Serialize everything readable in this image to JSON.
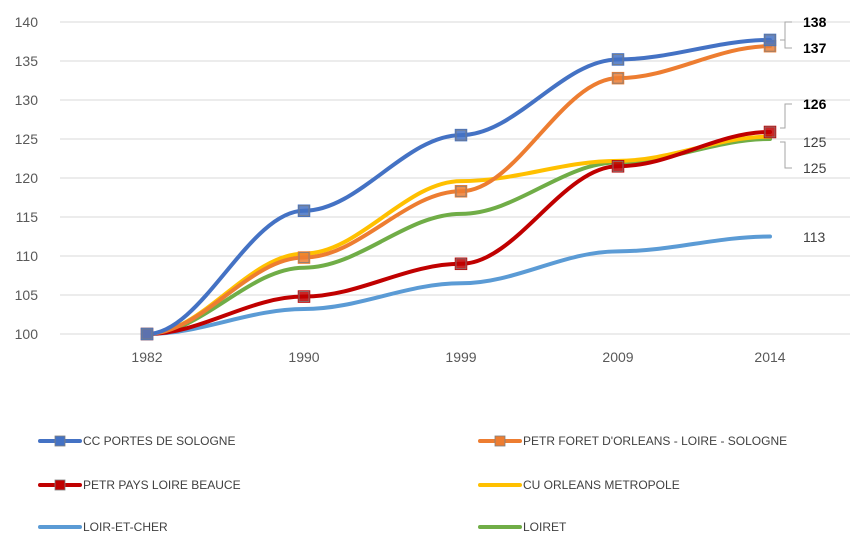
{
  "chart_data": {
    "type": "line",
    "categories": [
      "1982",
      "1990",
      "1999",
      "2009",
      "2014"
    ],
    "ylim": [
      100,
      140
    ],
    "yticks": [
      100,
      105,
      110,
      115,
      120,
      125,
      130,
      135,
      140
    ],
    "grid": true,
    "legend_position": "bottom",
    "series": [
      {
        "name": "CC PORTES DE SOLOGNE",
        "values": [
          100,
          115.8,
          125.5,
          135.2,
          137.7
        ],
        "color": "#4472c4",
        "markers": true,
        "end_label": "138",
        "end_label_bold": true
      },
      {
        "name": "PETR FORET D'ORLEANS - LOIRE - SOLOGNE",
        "values": [
          100,
          109.8,
          118.3,
          132.8,
          136.9
        ],
        "color": "#ed7d31",
        "markers": true,
        "end_label": "137",
        "end_label_bold": true
      },
      {
        "name": "PETR PAYS LOIRE BEAUCE",
        "values": [
          100,
          104.8,
          109.0,
          121.5,
          125.9
        ],
        "color": "#c00000",
        "markers": true,
        "end_label": "126",
        "end_label_bold": true
      },
      {
        "name": "CU ORLEANS METROPOLE",
        "values": [
          100,
          110.3,
          119.6,
          122.2,
          125.3
        ],
        "color": "#ffc000",
        "markers": false,
        "end_label": "125",
        "end_label_bold": false
      },
      {
        "name": "LOIR-ET-CHER",
        "values": [
          100,
          103.2,
          106.5,
          110.6,
          112.5
        ],
        "color": "#5b9bd5",
        "markers": false,
        "end_label": "113",
        "end_label_bold": false
      },
      {
        "name": "LOIRET",
        "values": [
          100,
          108.5,
          115.4,
          122.0,
          125.0
        ],
        "color": "#70ad47",
        "markers": false,
        "end_label": "125",
        "end_label_bold": false
      }
    ]
  }
}
